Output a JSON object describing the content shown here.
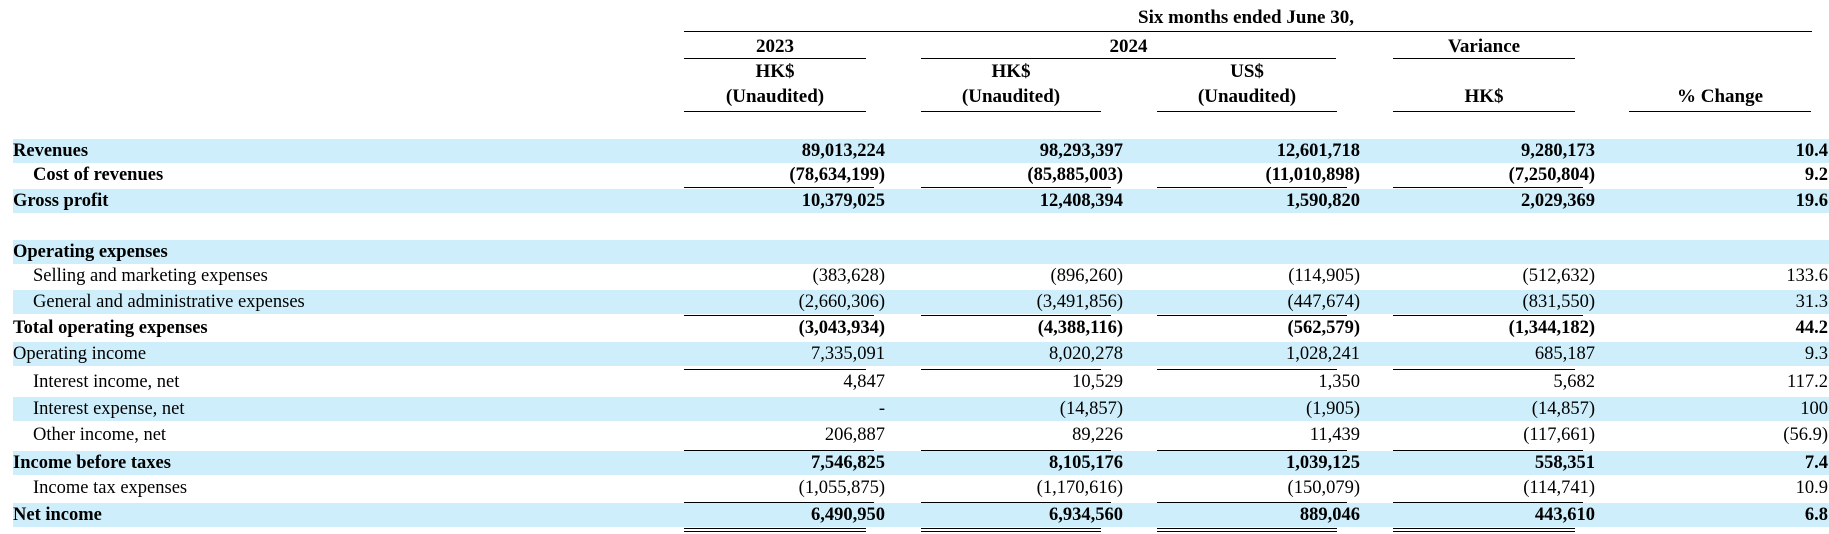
{
  "header": {
    "period": "Six months ended June 30,",
    "col_2023_year": "2023",
    "col_2024_year": "2024",
    "col_variance": "Variance",
    "col_2023_currency": "HK$",
    "col_2023_status": "(Unaudited)",
    "col_2024_hk_currency": "HK$",
    "col_2024_hk_status": "(Unaudited)",
    "col_2024_us_currency": "US$",
    "col_2024_us_status": "(Unaudited)",
    "col_variance_currency": "HK$",
    "col_pct_change": "% Change"
  },
  "rows": [
    {
      "label": "Revenues",
      "v2023": "89,013,224",
      "v2024hk": "98,293,397",
      "v2024us": "12,601,718",
      "var": "9,280,173",
      "pct": "10.4"
    },
    {
      "label": "Cost of revenues",
      "v2023": "(78,634,199)",
      "v2024hk": "(85,885,003)",
      "v2024us": "(11,010,898)",
      "var": "(7,250,804)",
      "pct": "9.2"
    },
    {
      "label": "Gross profit",
      "v2023": "10,379,025",
      "v2024hk": "12,408,394",
      "v2024us": "1,590,820",
      "var": "2,029,369",
      "pct": "19.6"
    },
    {
      "label": "",
      "v2023": "",
      "v2024hk": "",
      "v2024us": "",
      "var": "",
      "pct": ""
    },
    {
      "label": "Operating expenses",
      "v2023": "",
      "v2024hk": "",
      "v2024us": "",
      "var": "",
      "pct": ""
    },
    {
      "label": "Selling and marketing expenses",
      "v2023": "(383,628)",
      "v2024hk": "(896,260)",
      "v2024us": "(114,905)",
      "var": "(512,632)",
      "pct": "133.6"
    },
    {
      "label": "General and administrative expenses",
      "v2023": "(2,660,306)",
      "v2024hk": "(3,491,856)",
      "v2024us": "(447,674)",
      "var": "(831,550)",
      "pct": "31.3"
    },
    {
      "label": "Total operating expenses",
      "v2023": "(3,043,934)",
      "v2024hk": "(4,388,116)",
      "v2024us": "(562,579)",
      "var": "(1,344,182)",
      "pct": "44.2"
    },
    {
      "label": "Operating income",
      "v2023": "7,335,091",
      "v2024hk": "8,020,278",
      "v2024us": "1,028,241",
      "var": "685,187",
      "pct": "9.3"
    },
    {
      "label": "Interest income, net",
      "v2023": "4,847",
      "v2024hk": "10,529",
      "v2024us": "1,350",
      "var": "5,682",
      "pct": "117.2"
    },
    {
      "label": "Interest expense, net",
      "v2023": "-",
      "v2024hk": "(14,857)",
      "v2024us": "(1,905)",
      "var": "(14,857)",
      "pct": "100"
    },
    {
      "label": "Other income, net",
      "v2023": "206,887",
      "v2024hk": "89,226",
      "v2024us": "11,439",
      "var": "(117,661)",
      "pct": "(56.9)"
    },
    {
      "label": "Income before taxes",
      "v2023": "7,546,825",
      "v2024hk": "8,105,176",
      "v2024us": "1,039,125",
      "var": "558,351",
      "pct": "7.4"
    },
    {
      "label": "Income tax expenses",
      "v2023": "(1,055,875)",
      "v2024hk": "(1,170,616)",
      "v2024us": "(150,079)",
      "var": "(114,741)",
      "pct": "10.9"
    },
    {
      "label": "Net income",
      "v2023": "6,490,950",
      "v2024hk": "6,934,560",
      "v2024us": "889,046",
      "var": "443,610",
      "pct": "6.8"
    }
  ]
}
